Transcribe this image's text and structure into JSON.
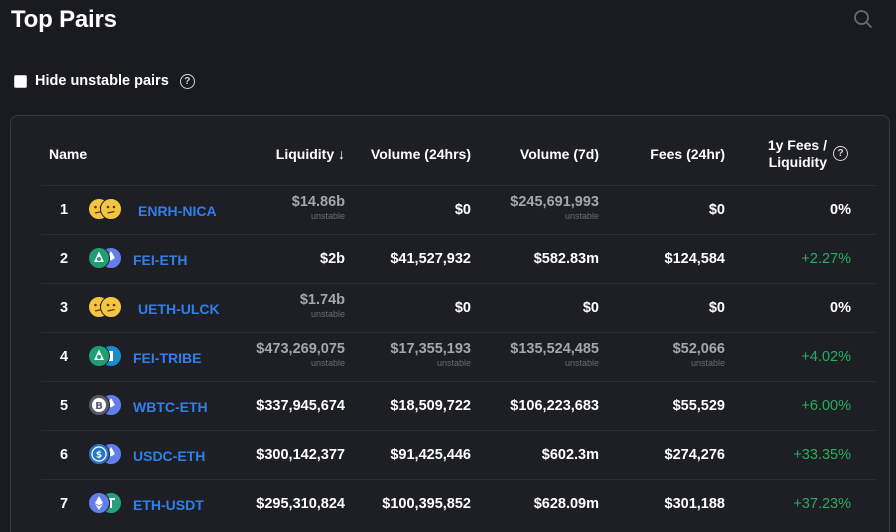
{
  "page": {
    "title": "Top Pairs",
    "search_icon": "search-icon",
    "hide_unstable_label": "Hide unstable pairs",
    "help_glyph": "?"
  },
  "table": {
    "headers": {
      "name": "Name",
      "liquidity": "Liquidity ↓",
      "volume24": "Volume (24hrs)",
      "volume7d": "Volume (7d)",
      "fees24": "Fees (24hr)",
      "yfees_line1": "1y Fees /",
      "yfees_line2": "Liquidity"
    },
    "unstable_tag": "unstable",
    "rows": [
      {
        "num": "1",
        "pair": "ENRH-NICA",
        "icon": "neutral-faces",
        "liquidity": "$14.86b",
        "liq_unstable": true,
        "vol24": "$0",
        "vol24_unstable": false,
        "vol7d": "$245,691,993",
        "vol7d_unstable": true,
        "fees": "$0",
        "fees_unstable": false,
        "apr": "0%",
        "apr_positive": false
      },
      {
        "num": "2",
        "pair": "FEI-ETH",
        "icon": "fei-eth",
        "liquidity": "$2b",
        "liq_unstable": false,
        "vol24": "$41,527,932",
        "vol24_unstable": false,
        "vol7d": "$582.83m",
        "vol7d_unstable": false,
        "fees": "$124,584",
        "fees_unstable": false,
        "apr": "+2.27%",
        "apr_positive": true
      },
      {
        "num": "3",
        "pair": "UETH-ULCK",
        "icon": "neutral-faces",
        "liquidity": "$1.74b",
        "liq_unstable": true,
        "vol24": "$0",
        "vol24_unstable": false,
        "vol7d": "$0",
        "vol7d_unstable": false,
        "fees": "$0",
        "fees_unstable": false,
        "apr": "0%",
        "apr_positive": false
      },
      {
        "num": "4",
        "pair": "FEI-TRIBE",
        "icon": "fei-tribe",
        "liquidity": "$473,269,075",
        "liq_unstable": true,
        "vol24": "$17,355,193",
        "vol24_unstable": true,
        "vol7d": "$135,524,485",
        "vol7d_unstable": true,
        "fees": "$52,066",
        "fees_unstable": true,
        "apr": "+4.02%",
        "apr_positive": true
      },
      {
        "num": "5",
        "pair": "WBTC-ETH",
        "icon": "wbtc-eth",
        "liquidity": "$337,945,674",
        "liq_unstable": false,
        "vol24": "$18,509,722",
        "vol24_unstable": false,
        "vol7d": "$106,223,683",
        "vol7d_unstable": false,
        "fees": "$55,529",
        "fees_unstable": false,
        "apr": "+6.00%",
        "apr_positive": true
      },
      {
        "num": "6",
        "pair": "USDC-ETH",
        "icon": "usdc-eth",
        "liquidity": "$300,142,377",
        "liq_unstable": false,
        "vol24": "$91,425,446",
        "vol24_unstable": false,
        "vol7d": "$602.3m",
        "vol7d_unstable": false,
        "fees": "$274,276",
        "fees_unstable": false,
        "apr": "+33.35%",
        "apr_positive": true
      },
      {
        "num": "7",
        "pair": "ETH-USDT",
        "icon": "eth-usdt",
        "liquidity": "$295,310,824",
        "liq_unstable": false,
        "vol24": "$100,395,852",
        "vol24_unstable": false,
        "vol7d": "$628.09m",
        "vol7d_unstable": false,
        "fees": "$301,188",
        "fees_unstable": false,
        "apr": "+37.23%",
        "apr_positive": true
      }
    ]
  },
  "colors": {
    "background": "#1a1b20",
    "link": "#2f80ed",
    "positive": "#27ae60",
    "muted": "#6b6c73"
  }
}
